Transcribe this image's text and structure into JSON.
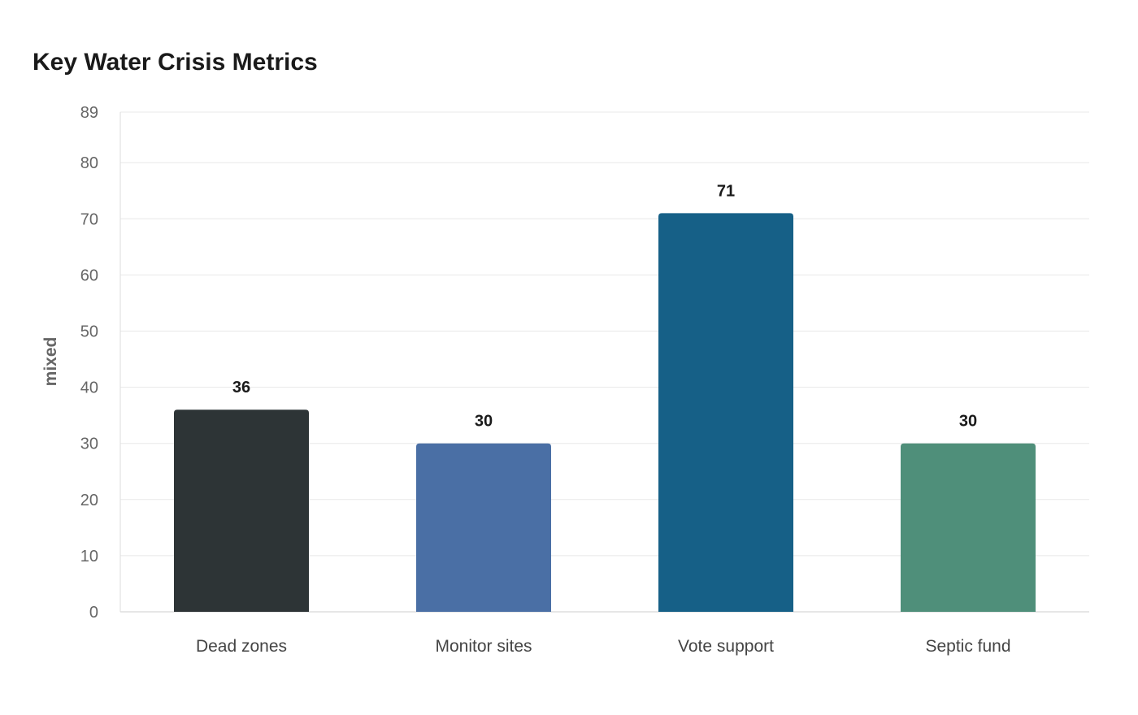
{
  "chart_data": {
    "type": "bar",
    "title": "Key Water Crisis Metrics",
    "xlabel": "",
    "ylabel": "mixed",
    "categories": [
      "Dead zones",
      "Monitor sites",
      "Vote support",
      "Septic fund"
    ],
    "values": [
      36,
      30,
      71,
      30
    ],
    "colors": [
      "#2d3436",
      "#4a6fa5",
      "#166087",
      "#4f8f7a"
    ],
    "ylim": [
      0,
      89
    ],
    "yticks": [
      0,
      10,
      20,
      30,
      40,
      50,
      60,
      70,
      80,
      89
    ],
    "grid": true,
    "legend": "none"
  }
}
